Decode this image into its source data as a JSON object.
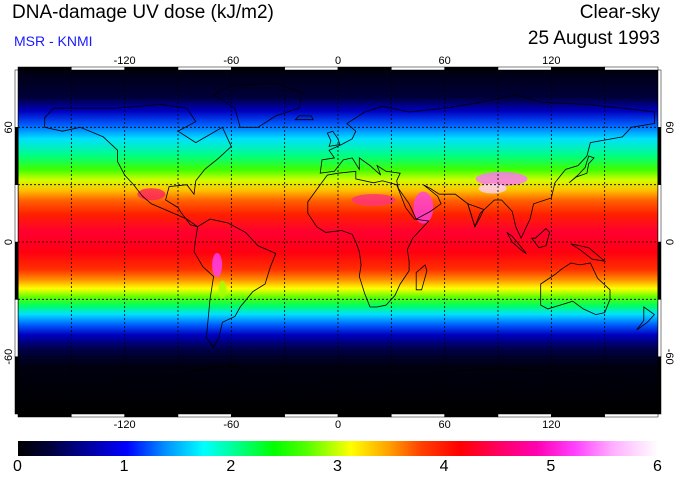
{
  "header": {
    "title": "DNA-damage UV dose (kJ/m2)",
    "source": "MSR - KNMI",
    "condition": "Clear-sky",
    "date": "25 August 1993"
  },
  "map": {
    "lon_ticks": [
      {
        "value": -120,
        "label": "-120"
      },
      {
        "value": -60,
        "label": "-60"
      },
      {
        "value": 0,
        "label": "0"
      },
      {
        "value": 60,
        "label": "60"
      },
      {
        "value": 120,
        "label": "120"
      }
    ],
    "lat_ticks": [
      {
        "value": 60,
        "label": "60"
      },
      {
        "value": 0,
        "label": "0"
      },
      {
        "value": -60,
        "label": "-60"
      }
    ],
    "lon_range": [
      -180,
      180
    ],
    "lat_range": [
      -90,
      90
    ],
    "grid": true,
    "grid_spacing_deg": 30
  },
  "colorbar": {
    "min": 0,
    "max": 6,
    "labels": [
      "0",
      "1",
      "2",
      "3",
      "4",
      "5",
      "6"
    ]
  }
}
